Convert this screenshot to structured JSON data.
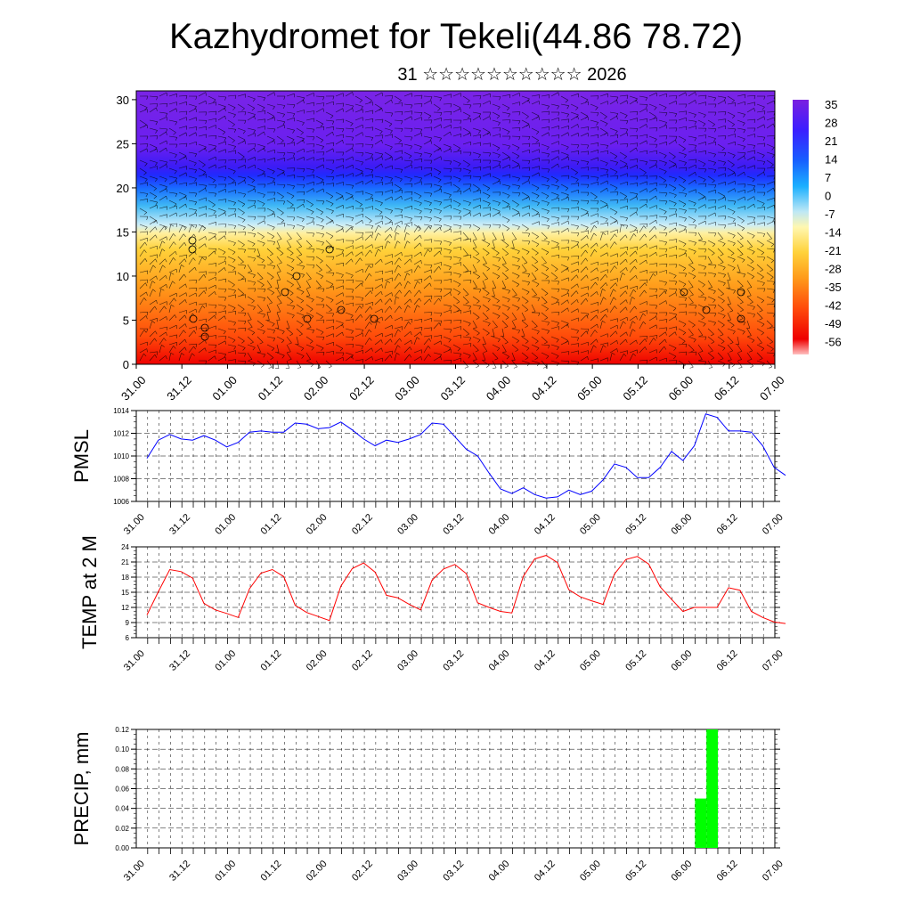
{
  "title": "Kazhydromet for Tekeli(44.86 78.72)",
  "subtitle": "31 ☆☆☆☆☆☆☆☆☆☆ 2026",
  "time_labels": [
    "31.00",
    "31.12",
    "01.00",
    "01.12",
    "02.00",
    "02.12",
    "03.00",
    "03.12",
    "04.00",
    "04.12",
    "05.00",
    "05.12",
    "06.00",
    "06.12",
    "07.00"
  ],
  "colors": {
    "pmsl_line": "#0000ff",
    "temp_line": "#ff0000",
    "precip_bar": "#00ff00",
    "colorbar": [
      "#7a1fe0",
      "#3b1fff",
      "#1760ff",
      "#1bb0ff",
      "#bfe8f5",
      "#fff7b0",
      "#ffd23a",
      "#ff9a1a",
      "#ff4a0a",
      "#ee0000",
      "#ffc0c0"
    ]
  },
  "chart_data": [
    {
      "type": "heatmap",
      "description_of_axes": "time vs height level",
      "x_tick_labels": [
        "31.00",
        "31.12",
        "01.00",
        "01.12",
        "02.00",
        "02.12",
        "03.00",
        "03.12",
        "04.00",
        "04.12",
        "05.00",
        "05.12",
        "06.00",
        "06.12",
        "07.00"
      ],
      "ylim": [
        0,
        31
      ],
      "y_ticks": [
        0,
        5,
        10,
        15,
        20,
        25,
        30
      ],
      "colorbar_labels": [
        "35",
        "28",
        "21",
        "14",
        "7",
        "0",
        "-7",
        "-14",
        "-21",
        "-28",
        "-35",
        "-42",
        "-49",
        "-56"
      ],
      "wind_barbs": true
    },
    {
      "type": "line",
      "ylabel": "PMSL",
      "x_tick_labels": [
        "31.00",
        "31.12",
        "01.00",
        "01.12",
        "02.00",
        "02.12",
        "03.00",
        "03.12",
        "04.00",
        "04.12",
        "05.00",
        "05.12",
        "06.00",
        "06.12",
        "07.00"
      ],
      "ylim": [
        1006,
        1014
      ],
      "y_ticks": [
        "1006",
        "1008",
        "1010",
        "1012",
        "1014"
      ],
      "values": [
        1009.8,
        1011.4,
        1011.9,
        1011.5,
        1011.4,
        1011.8,
        1011.4,
        1010.8,
        1011.2,
        1012.1,
        1012.2,
        1012.1,
        1012.1,
        1012.9,
        1012.8,
        1012.4,
        1012.5,
        1013.0,
        1012.3,
        1011.5,
        1010.9,
        1011.4,
        1011.2,
        1011.5,
        1011.9,
        1012.9,
        1012.8,
        1011.7,
        1010.6,
        1010.0,
        1008.5,
        1007.1,
        1006.7,
        1007.2,
        1006.6,
        1006.3,
        1006.4,
        1007.0,
        1006.6,
        1006.9,
        1007.9,
        1009.3,
        1009.0,
        1008.1,
        1008.1,
        1009.0,
        1010.4,
        1009.6,
        1010.9,
        1013.7,
        1013.4,
        1012.2,
        1012.2,
        1012.1,
        1010.9,
        1009.0,
        1008.3
      ]
    },
    {
      "type": "line",
      "ylabel": "TEMP at 2 M",
      "x_tick_labels": [
        "31.00",
        "31.12",
        "01.00",
        "01.12",
        "02.00",
        "02.12",
        "03.00",
        "03.12",
        "04.00",
        "04.12",
        "05.00",
        "05.12",
        "06.00",
        "06.12",
        "07.00"
      ],
      "ylim": [
        6,
        24
      ],
      "y_ticks": [
        "6",
        "9",
        "12",
        "15",
        "18",
        "21",
        "24"
      ],
      "values": [
        10.5,
        15.1,
        19.5,
        19.1,
        17.8,
        12.8,
        11.5,
        10.8,
        10.0,
        15.7,
        18.8,
        19.5,
        18.1,
        12.4,
        11.0,
        10.2,
        9.4,
        16.2,
        19.7,
        20.8,
        19.0,
        14.4,
        13.9,
        12.6,
        11.5,
        17.4,
        19.6,
        20.5,
        18.7,
        12.9,
        12.0,
        11.2,
        10.9,
        18.1,
        21.6,
        22.3,
        20.9,
        15.5,
        14.1,
        13.3,
        12.6,
        18.6,
        21.5,
        22.1,
        20.6,
        16.1,
        13.6,
        11.2,
        12.0,
        12.0,
        12.0,
        15.9,
        15.4,
        11.2,
        10.0,
        9.1,
        8.8
      ]
    },
    {
      "type": "bar",
      "ylabel": "PRECIP, mm",
      "x_tick_labels": [
        "31.00",
        "31.12",
        "01.00",
        "01.12",
        "02.00",
        "02.12",
        "03.00",
        "03.12",
        "04.00",
        "04.12",
        "05.00",
        "05.12",
        "06.00",
        "06.12",
        "07.00"
      ],
      "ylim": [
        0,
        0.12
      ],
      "y_ticks": [
        "0.00",
        "0.02",
        "0.04",
        "0.06",
        "0.08",
        "0.10",
        "0.12"
      ],
      "bars": [
        {
          "x_hours": 147,
          "value": 0.05
        },
        {
          "x_hours": 150,
          "value": 0.12
        }
      ]
    }
  ]
}
